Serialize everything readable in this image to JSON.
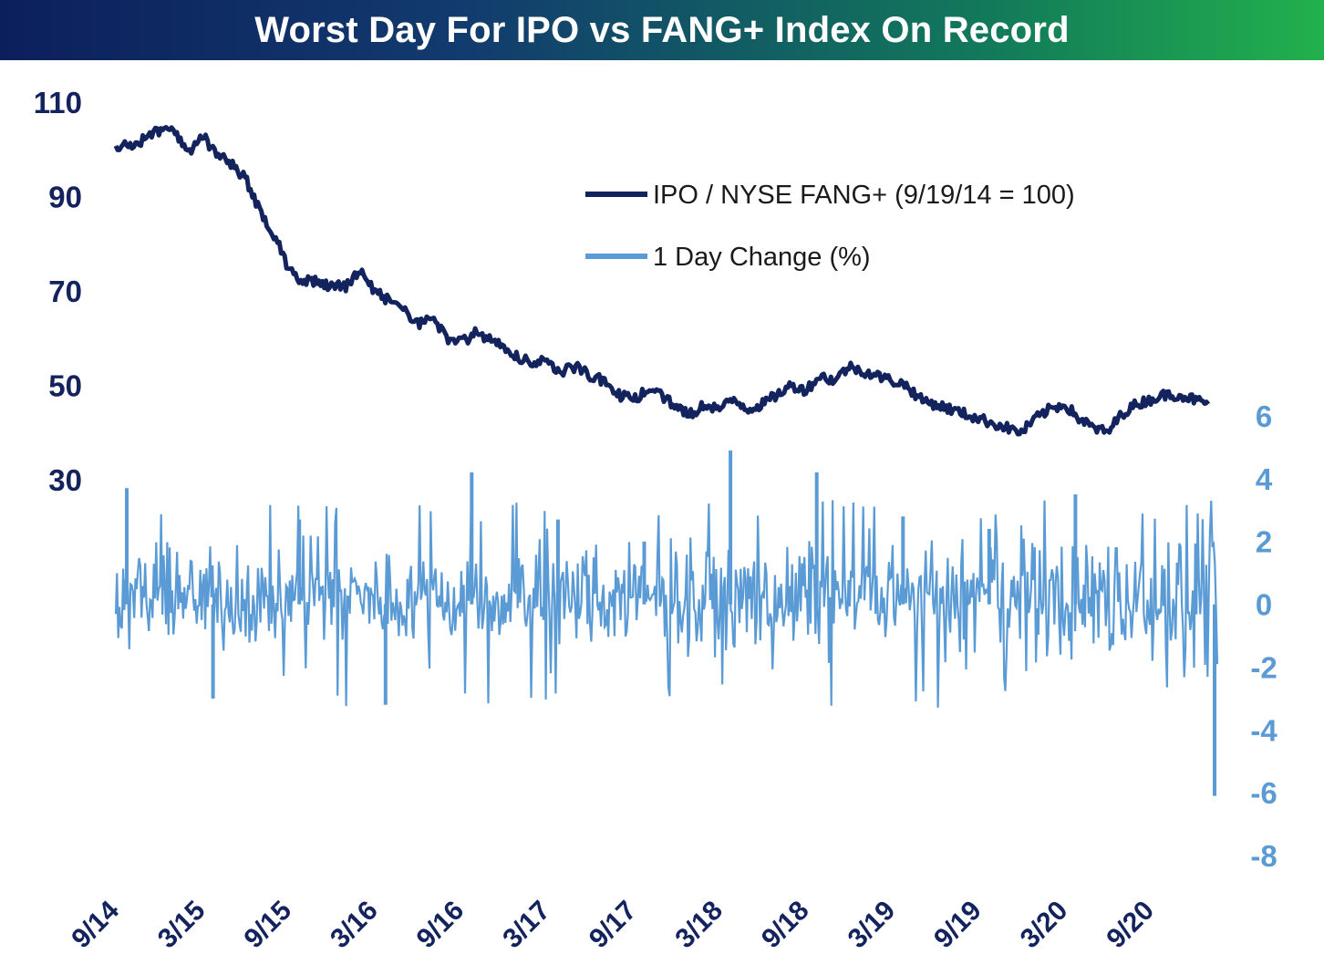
{
  "chart_data": {
    "type": "line",
    "title": "Worst Day For IPO vs FANG+ Index On Record",
    "x_tick_labels": [
      "9/14",
      "3/15",
      "9/15",
      "3/16",
      "9/16",
      "3/17",
      "9/17",
      "3/18",
      "9/18",
      "3/19",
      "9/19",
      "3/20",
      "9/20"
    ],
    "y_left": {
      "ticks": [
        "110",
        "90",
        "70",
        "50",
        "30"
      ],
      "range": [
        30,
        110
      ]
    },
    "y_right": {
      "ticks": [
        "6",
        "4",
        "2",
        "0",
        "-2",
        "-4",
        "-6",
        "-8"
      ],
      "range": [
        -8,
        6
      ]
    },
    "legend_position": "top-right",
    "series": [
      {
        "name": "IPO / NYSE FANG+ (9/19/14 = 100)",
        "axis": "left",
        "color": "#13235e",
        "x": [
          "9/14",
          "10/14",
          "11/14",
          "12/14",
          "1/15",
          "2/15",
          "3/15",
          "4/15",
          "5/15",
          "6/15",
          "7/15",
          "8/15",
          "9/15",
          "10/15",
          "11/15",
          "12/15",
          "1/16",
          "2/16",
          "3/16",
          "4/16",
          "5/16",
          "6/16",
          "7/16",
          "8/16",
          "9/16",
          "10/16",
          "11/16",
          "12/16",
          "1/17",
          "2/17",
          "3/17",
          "4/17",
          "5/17",
          "6/17",
          "7/17",
          "8/17",
          "9/17",
          "10/17",
          "11/17",
          "12/17",
          "1/18",
          "2/18",
          "3/18",
          "4/18",
          "5/18",
          "6/18",
          "7/18",
          "8/18",
          "9/18",
          "10/18",
          "11/18",
          "12/18",
          "1/19",
          "2/19",
          "3/19",
          "4/19",
          "5/19",
          "6/19",
          "7/19",
          "8/19",
          "9/19",
          "10/19",
          "11/19",
          "12/19",
          "1/20",
          "2/20",
          "3/20",
          "4/20",
          "5/20",
          "6/20",
          "7/20",
          "8/20",
          "9/20",
          "10/20",
          "11/20",
          "12/20",
          "1/21"
        ],
        "values": [
          100,
          101,
          102,
          104,
          105,
          99,
          103,
          99,
          97,
          94,
          87,
          82,
          75,
          72,
          72,
          71,
          71,
          74,
          70,
          68,
          66,
          63,
          64,
          60,
          59,
          61,
          60,
          58,
          56,
          55,
          55,
          53,
          54,
          52,
          51,
          48,
          47,
          49,
          48,
          45,
          44,
          46,
          45,
          47,
          45,
          46,
          48,
          50,
          49,
          52,
          51,
          54,
          53,
          52,
          51,
          50,
          47,
          46,
          45,
          44,
          43,
          42,
          41,
          40,
          43,
          45,
          46,
          43,
          41,
          40,
          44,
          46,
          47,
          48,
          48,
          47,
          46
        ]
      },
      {
        "name": "1 Day Change (%)",
        "axis": "right",
        "color": "#5b9bd5",
        "x": [
          "9/14",
          "3/15",
          "9/15",
          "3/16",
          "9/16",
          "3/17",
          "9/17",
          "3/18",
          "9/18",
          "3/19",
          "9/19",
          "3/20",
          "9/20"
        ],
        "values": [
          3.7,
          -3.0,
          2.7,
          -3.2,
          4.2,
          2.7,
          2.0,
          4.9,
          4.2,
          2.8,
          2.4,
          3.5,
          -6.1
        ]
      }
    ]
  }
}
